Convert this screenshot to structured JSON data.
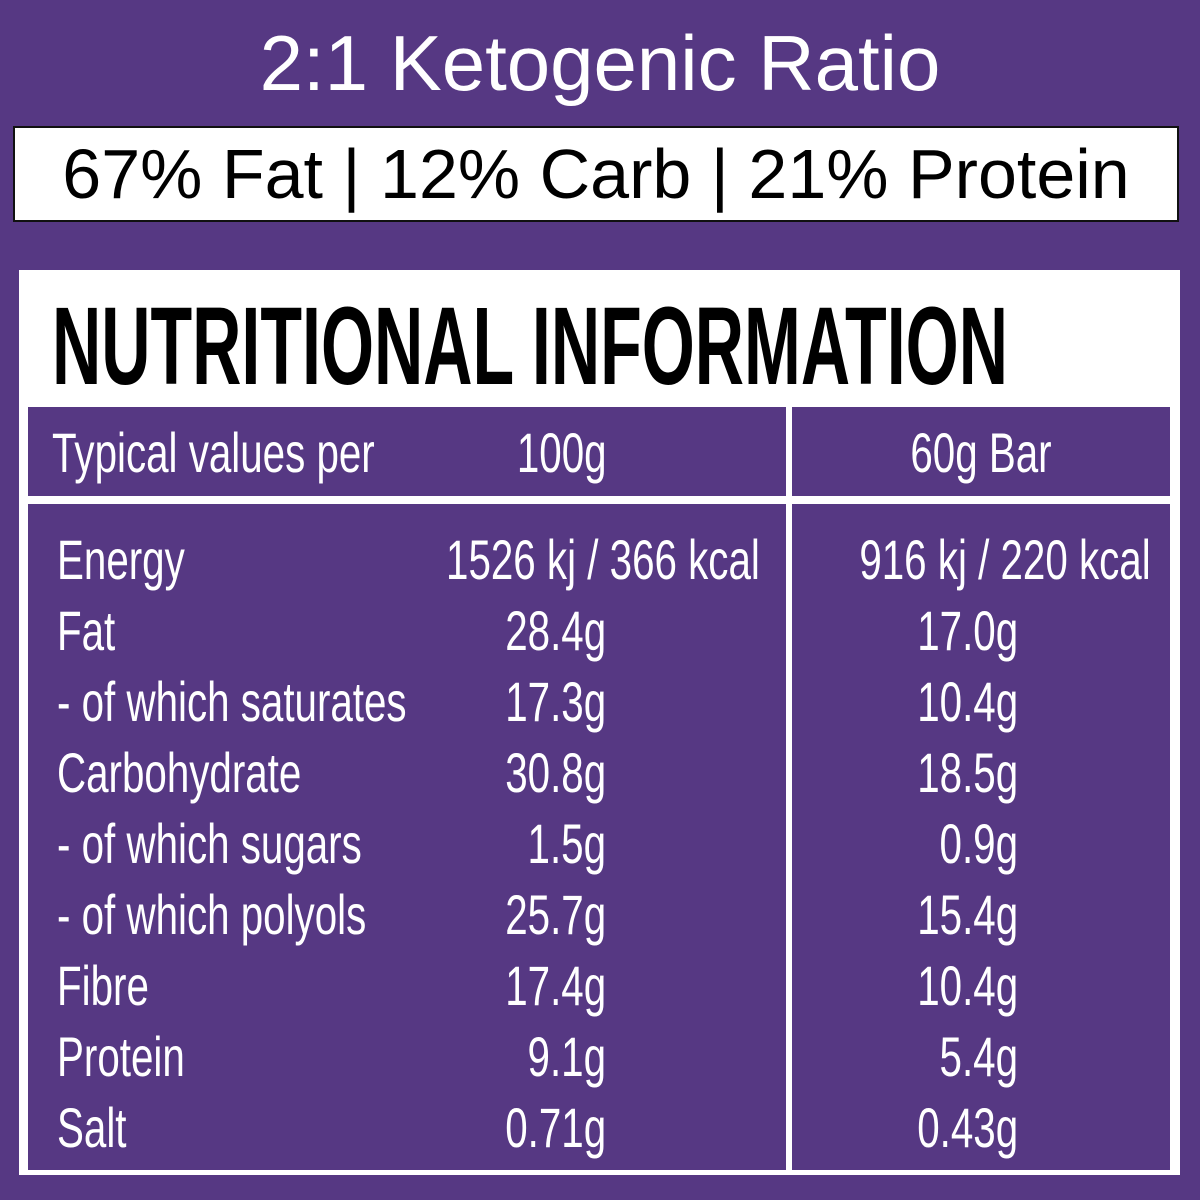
{
  "title": "2:1 Ketogenic Ratio",
  "ratio_line": "67% Fat | 12% Carb | 21% Protein",
  "panel": {
    "heading": "NUTRITIONAL INFORMATION",
    "header": {
      "label": "Typical values per",
      "col1": "100g",
      "col2": "60g Bar"
    },
    "rows": [
      {
        "name": "Energy",
        "per100": "1526 kj / 366 kcal",
        "perBar": "916 kj / 220 kcal"
      },
      {
        "name": "Fat",
        "per100": "28.4g",
        "perBar": "17.0g"
      },
      {
        "name": "- of which saturates",
        "per100": "17.3g",
        "perBar": "10.4g"
      },
      {
        "name": "Carbohydrate",
        "per100": "30.8g",
        "perBar": "18.5g"
      },
      {
        "name": "- of which sugars",
        "per100": "1.5g",
        "perBar": "0.9g"
      },
      {
        "name": "- of which polyols",
        "per100": "25.7g",
        "perBar": "15.4g"
      },
      {
        "name": "Fibre",
        "per100": "17.4g",
        "perBar": "10.4g"
      },
      {
        "name": "Protein",
        "per100": "9.1g",
        "perBar": "5.4g"
      },
      {
        "name": "Salt",
        "per100": "0.71g",
        "perBar": "0.43g"
      }
    ]
  },
  "colors": {
    "background": "#563883",
    "panel": "#ffffff",
    "text": "#ffffff"
  }
}
